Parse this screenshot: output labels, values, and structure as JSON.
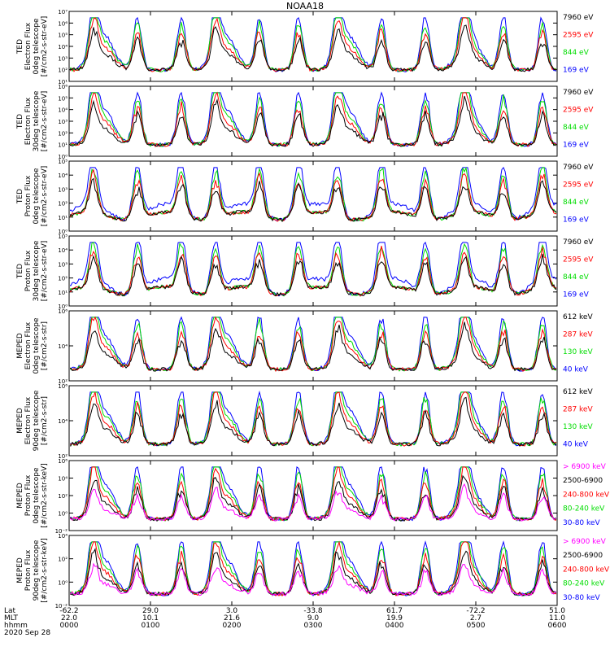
{
  "title": "NOAA18",
  "chart_data": [
    {
      "type": "line",
      "ylabel": [
        "TED",
        "Electron Flux",
        "0deg telescope",
        "[#/cm2-s-str-eV]"
      ],
      "ylog": [
        1,
        7
      ],
      "tick_labels": [
        "10¹",
        "10²",
        "10³",
        "10⁴",
        "10⁵",
        "10⁶",
        "10⁷"
      ],
      "series": [
        {
          "name": "7960 eV",
          "color": "#000000"
        },
        {
          "name": "2595 eV",
          "color": "#ff0000"
        },
        {
          "name": "844 eV",
          "color": "#00dd00"
        },
        {
          "name": "169 eV",
          "color": "#0000ff"
        }
      ]
    },
    {
      "type": "line",
      "ylabel": [
        "TED",
        "Electron Flux",
        "30deg telescope",
        "[#/cm2-s-str-eV]"
      ],
      "ylog": [
        0,
        6
      ],
      "tick_labels": [
        "10⁰",
        "10¹",
        "10²",
        "10³",
        "10⁴",
        "10⁵",
        "10⁶"
      ],
      "series": [
        {
          "name": "7960 eV",
          "color": "#000000"
        },
        {
          "name": "2595 eV",
          "color": "#ff0000"
        },
        {
          "name": "844 eV",
          "color": "#00dd00"
        },
        {
          "name": "169 eV",
          "color": "#0000ff"
        }
      ]
    },
    {
      "type": "line",
      "ylabel": [
        "TED",
        "Proton Flux",
        "0deg telescope",
        "[#/cm2-s-str-eV]"
      ],
      "ylog": [
        0,
        5
      ],
      "tick_labels": [
        "10⁰",
        "10¹",
        "10²",
        "10³",
        "10⁴",
        "10⁵"
      ],
      "series": [
        {
          "name": "7960 eV",
          "color": "#000000"
        },
        {
          "name": "2595 eV",
          "color": "#ff0000"
        },
        {
          "name": "844 eV",
          "color": "#00dd00"
        },
        {
          "name": "169 eV",
          "color": "#0000ff"
        }
      ]
    },
    {
      "type": "line",
      "ylabel": [
        "TED",
        "Proton Flux",
        "30deg telescope",
        "[#/cm2-s-str-eV]"
      ],
      "ylog": [
        0,
        5
      ],
      "tick_labels": [
        "10⁰",
        "10¹",
        "10²",
        "10³",
        "10⁴",
        "10⁵"
      ],
      "series": [
        {
          "name": "7960 eV",
          "color": "#000000"
        },
        {
          "name": "2595 eV",
          "color": "#ff0000"
        },
        {
          "name": "844 eV",
          "color": "#00dd00"
        },
        {
          "name": "169 eV",
          "color": "#0000ff"
        }
      ]
    },
    {
      "type": "line",
      "ylabel": [
        "MEPED",
        "Electron Flux",
        "0deg telescope",
        "[#/cm2-s-str]"
      ],
      "ylog": [
        1,
        7
      ],
      "tick_labels": [
        "10²",
        "10⁴",
        "10⁶"
      ],
      "series": [
        {
          "name": "612 keV",
          "color": "#000000"
        },
        {
          "name": "287 keV",
          "color": "#ff0000"
        },
        {
          "name": "130 keV",
          "color": "#00dd00"
        },
        {
          "name": "40 keV",
          "color": "#0000ff"
        }
      ]
    },
    {
      "type": "line",
      "ylabel": [
        "MEPED",
        "Electron Flux",
        "90deg telescope",
        "[#/cm2-s-str]"
      ],
      "ylog": [
        1,
        7
      ],
      "tick_labels": [
        "10²",
        "10⁴",
        "10⁶"
      ],
      "series": [
        {
          "name": "612 keV",
          "color": "#000000"
        },
        {
          "name": "287 keV",
          "color": "#ff0000"
        },
        {
          "name": "130 keV",
          "color": "#00dd00"
        },
        {
          "name": "40 keV",
          "color": "#0000ff"
        }
      ]
    },
    {
      "type": "line",
      "ylabel": [
        "MEPED",
        "Proton Flux",
        "0deg telescope",
        "[#/cm2-s-str-keV]"
      ],
      "ylog": [
        -2,
        7
      ],
      "tick_labels": [
        "10⁻²",
        "10⁰",
        "10²",
        "10⁴",
        "10⁶"
      ],
      "series": [
        {
          "name": "> 6900 keV",
          "color": "#ff00ff"
        },
        {
          "name": "2500-6900",
          "color": "#000000"
        },
        {
          "name": "240-800 keV",
          "color": "#ff0000"
        },
        {
          "name": "80-240 keV",
          "color": "#00dd00"
        },
        {
          "name": "30-80 keV",
          "color": "#0000ff"
        }
      ]
    },
    {
      "type": "line",
      "ylabel": [
        "MEPED",
        "Proton Flux",
        "90deg telescope",
        "[#/cm2-s-str-keV]"
      ],
      "ylog": [
        -2,
        6
      ],
      "tick_labels": [
        "10⁻²",
        "10⁰",
        "10²",
        "10⁴"
      ],
      "series": [
        {
          "name": "> 6900 keV",
          "color": "#ff00ff"
        },
        {
          "name": "2500-6900",
          "color": "#000000"
        },
        {
          "name": "240-800 keV",
          "color": "#ff0000"
        },
        {
          "name": "80-240 keV",
          "color": "#00dd00"
        },
        {
          "name": "30-80 keV",
          "color": "#0000ff"
        }
      ]
    }
  ],
  "footer": {
    "row_labels": [
      "Lat",
      "MLT",
      "hhmm",
      "2020 Sep 28"
    ],
    "lat": [
      "-62.2",
      "29.0",
      "3.0",
      "-33.8",
      "61.7",
      "-72.2",
      "51.0"
    ],
    "mlt": [
      "22.0",
      "10.1",
      "21.6",
      "9.0",
      "19.9",
      "2.7",
      "11.0"
    ],
    "hhmm": [
      "0000",
      "0100",
      "0200",
      "0300",
      "0400",
      "0500",
      "0600"
    ]
  }
}
